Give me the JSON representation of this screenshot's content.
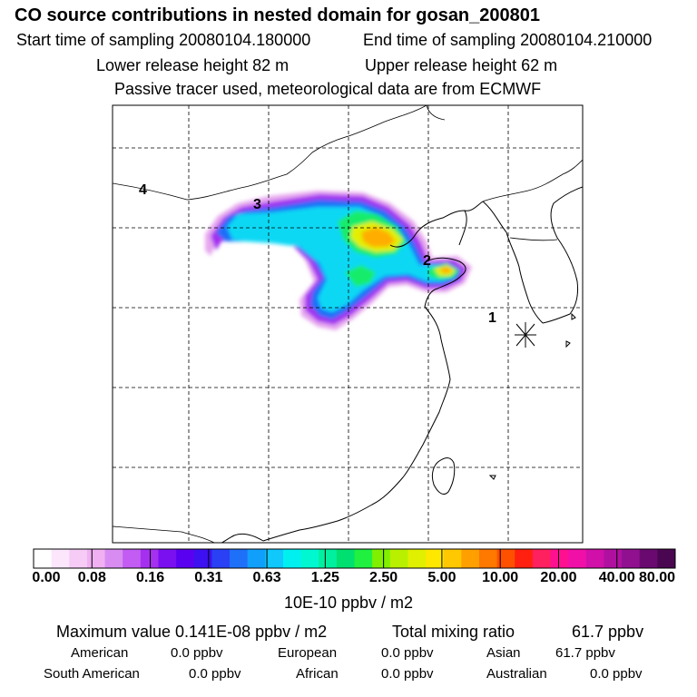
{
  "header": {
    "title": "CO  source contributions in nested domain for gosan_200801",
    "start_label": "Start time of sampling 20080104.180000",
    "end_label": "End time of sampling 20080104.210000",
    "lower_label": "Lower release height   82 m",
    "upper_label": "Upper release height   62 m",
    "tracer_label": "Passive tracer used, meteorological data are from ECMWF"
  },
  "map": {
    "markers": [
      "1",
      "2",
      "3",
      "4"
    ],
    "receptor_symbol": "asterisk"
  },
  "colorbar": {
    "ticks": [
      "0.00",
      "0.08",
      "0.16",
      "0.31",
      "0.63",
      "1.25",
      "2.50",
      "5.00",
      "10.00",
      "20.00",
      "40.00",
      "80.00"
    ],
    "units": "10E-10 ppbv / m2",
    "colors": [
      "#ffffff",
      "#fbe6fb",
      "#f6ccf6",
      "#f0b0f2",
      "#d88cf2",
      "#c25cf2",
      "#a630f0",
      "#7a10f0",
      "#5a00f0",
      "#3c10f0",
      "#2a40f4",
      "#1e70f8",
      "#10a0fc",
      "#10c8fc",
      "#00f0f0",
      "#00f8d0",
      "#00f0a0",
      "#00e070",
      "#20f040",
      "#80f000",
      "#b8f000",
      "#e0f000",
      "#ffe800",
      "#ffc800",
      "#ffa000",
      "#ff7800",
      "#ff5000",
      "#ff2010",
      "#ff2060",
      "#ff1090",
      "#f010a8",
      "#d010a8",
      "#b010a0",
      "#901090",
      "#6a0a70",
      "#4a0650"
    ]
  },
  "stats": {
    "max_label": "Maximum value  0.141E-08 ppbv / m2",
    "total_label": "Total mixing ratio",
    "total_value": "61.7 ppbv",
    "american_label": "American",
    "american_value": "0.0 ppbv",
    "european_label": "European",
    "european_value": "0.0 ppbv",
    "asian_label": "Asian",
    "asian_value": "61.7 ppbv",
    "south_american_label": "South American",
    "south_american_value": "0.0 ppbv",
    "african_label": "African",
    "african_value": "0.0 ppbv",
    "australian_label": "Australian",
    "australian_value": "0.0 ppbv"
  }
}
